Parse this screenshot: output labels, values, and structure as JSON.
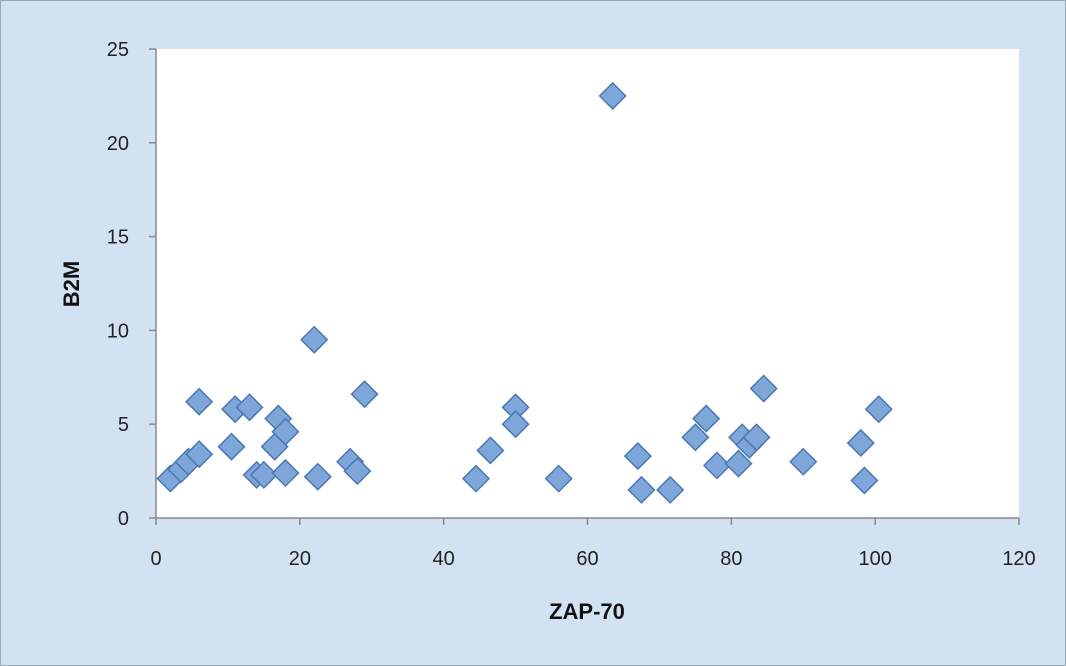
{
  "chart_data": {
    "type": "scatter",
    "title": "",
    "xlabel": "ZAP-70",
    "ylabel": "B2M",
    "xlim": [
      0,
      120
    ],
    "ylim": [
      0,
      25
    ],
    "xticks": [
      "0",
      "20",
      "40",
      "60",
      "80",
      "100",
      "120"
    ],
    "yticks": [
      "0",
      "5",
      "10",
      "15",
      "20",
      "25"
    ],
    "grid": false,
    "legend": "none",
    "marker": "diamond",
    "colors": {
      "plot_background": "#ffffff",
      "chart_background": "#d3e2f2",
      "marker_fill": "#7ea6d8",
      "marker_edge": "#4a78b5"
    },
    "series": [
      {
        "points": [
          {
            "x": 2,
            "y": 2.1
          },
          {
            "x": 3.5,
            "y": 2.6
          },
          {
            "x": 4.5,
            "y": 3.0
          },
          {
            "x": 6,
            "y": 3.4
          },
          {
            "x": 6,
            "y": 6.2
          },
          {
            "x": 10.5,
            "y": 3.8
          },
          {
            "x": 11,
            "y": 5.8
          },
          {
            "x": 13,
            "y": 5.9
          },
          {
            "x": 14,
            "y": 2.3
          },
          {
            "x": 15,
            "y": 2.3
          },
          {
            "x": 16.5,
            "y": 3.8
          },
          {
            "x": 17,
            "y": 5.3
          },
          {
            "x": 18,
            "y": 4.6
          },
          {
            "x": 18,
            "y": 2.4
          },
          {
            "x": 22,
            "y": 9.5
          },
          {
            "x": 22.5,
            "y": 2.2
          },
          {
            "x": 27,
            "y": 3.0
          },
          {
            "x": 28,
            "y": 2.5
          },
          {
            "x": 29,
            "y": 6.6
          },
          {
            "x": 44.5,
            "y": 2.1
          },
          {
            "x": 46.5,
            "y": 3.6
          },
          {
            "x": 50,
            "y": 5.9
          },
          {
            "x": 50,
            "y": 5.0
          },
          {
            "x": 56,
            "y": 2.1
          },
          {
            "x": 63.5,
            "y": 22.5
          },
          {
            "x": 67,
            "y": 3.3
          },
          {
            "x": 67.5,
            "y": 1.5
          },
          {
            "x": 71.5,
            "y": 1.5
          },
          {
            "x": 75,
            "y": 4.3
          },
          {
            "x": 76.5,
            "y": 5.3
          },
          {
            "x": 78,
            "y": 2.8
          },
          {
            "x": 81,
            "y": 2.9
          },
          {
            "x": 81.5,
            "y": 4.3
          },
          {
            "x": 82.5,
            "y": 3.9
          },
          {
            "x": 83.5,
            "y": 4.3
          },
          {
            "x": 84.5,
            "y": 6.9
          },
          {
            "x": 90,
            "y": 3.0
          },
          {
            "x": 98,
            "y": 4.0
          },
          {
            "x": 98.5,
            "y": 2.0
          },
          {
            "x": 100.5,
            "y": 5.8
          }
        ]
      }
    ]
  }
}
